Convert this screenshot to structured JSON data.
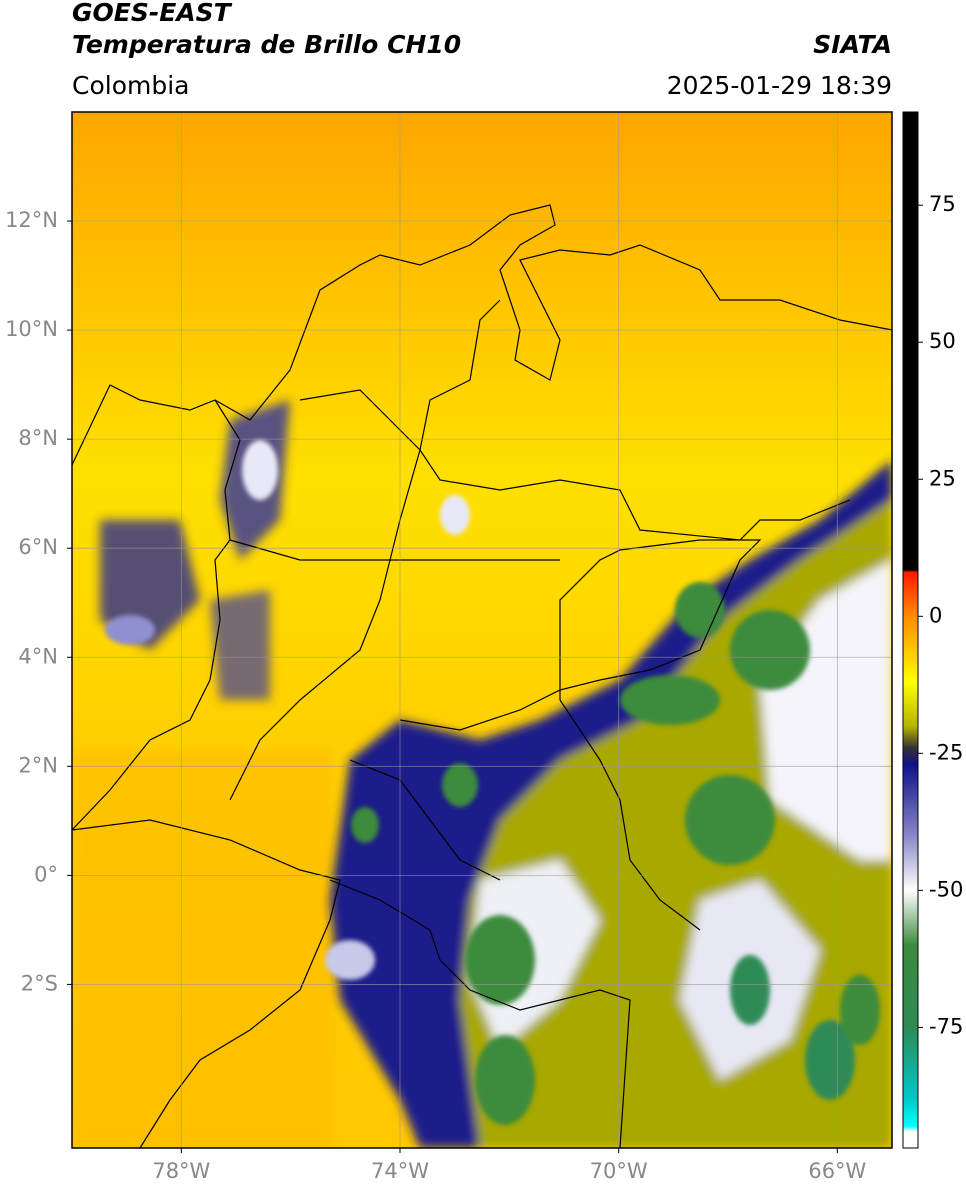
{
  "header": {
    "title": "GOES-EAST",
    "subtitle": "Temperatura de Brillo CH10",
    "source": "SIATA",
    "region": "Colombia",
    "timestamp": "2025-01-29 18:39"
  },
  "map": {
    "lonlim": [
      -80,
      -65
    ],
    "latlim": [
      -5,
      14
    ],
    "grid": true,
    "lon_ticks": [
      {
        "value": -78,
        "label": "78°W"
      },
      {
        "value": -74,
        "label": "74°W"
      },
      {
        "value": -70,
        "label": "70°W"
      },
      {
        "value": -66,
        "label": "66°W"
      }
    ],
    "lat_ticks": [
      {
        "value": 12,
        "label": "12°N"
      },
      {
        "value": 10,
        "label": "10°N"
      },
      {
        "value": 8,
        "label": "8°N"
      },
      {
        "value": 6,
        "label": "6°N"
      },
      {
        "value": 4,
        "label": "4°N"
      },
      {
        "value": 2,
        "label": "2°N"
      },
      {
        "value": 0,
        "label": "0°"
      },
      {
        "value": -2,
        "label": "2°S"
      }
    ]
  },
  "colorbar": {
    "lim": [
      -97,
      92
    ],
    "ticks": [
      75,
      50,
      25,
      0,
      -25,
      -50,
      -75
    ],
    "colormap": [
      [
        92,
        "#000000"
      ],
      [
        8.5,
        "#000000"
      ],
      [
        8,
        "#ff1a00"
      ],
      [
        0,
        "#ff8c00"
      ],
      [
        -12,
        "#ffff00"
      ],
      [
        -20,
        "#b5b500"
      ],
      [
        -24,
        "#333333"
      ],
      [
        -27,
        "#10108a"
      ],
      [
        -40,
        "#8888c8"
      ],
      [
        -50,
        "#ffffff"
      ],
      [
        -60,
        "#3d8b3d"
      ],
      [
        -75,
        "#2e8b57"
      ],
      [
        -88,
        "#00c8c8"
      ],
      [
        -93,
        "#00ffff"
      ],
      [
        -94,
        "#ffffff"
      ],
      [
        -97,
        "#ffffff"
      ]
    ]
  }
}
